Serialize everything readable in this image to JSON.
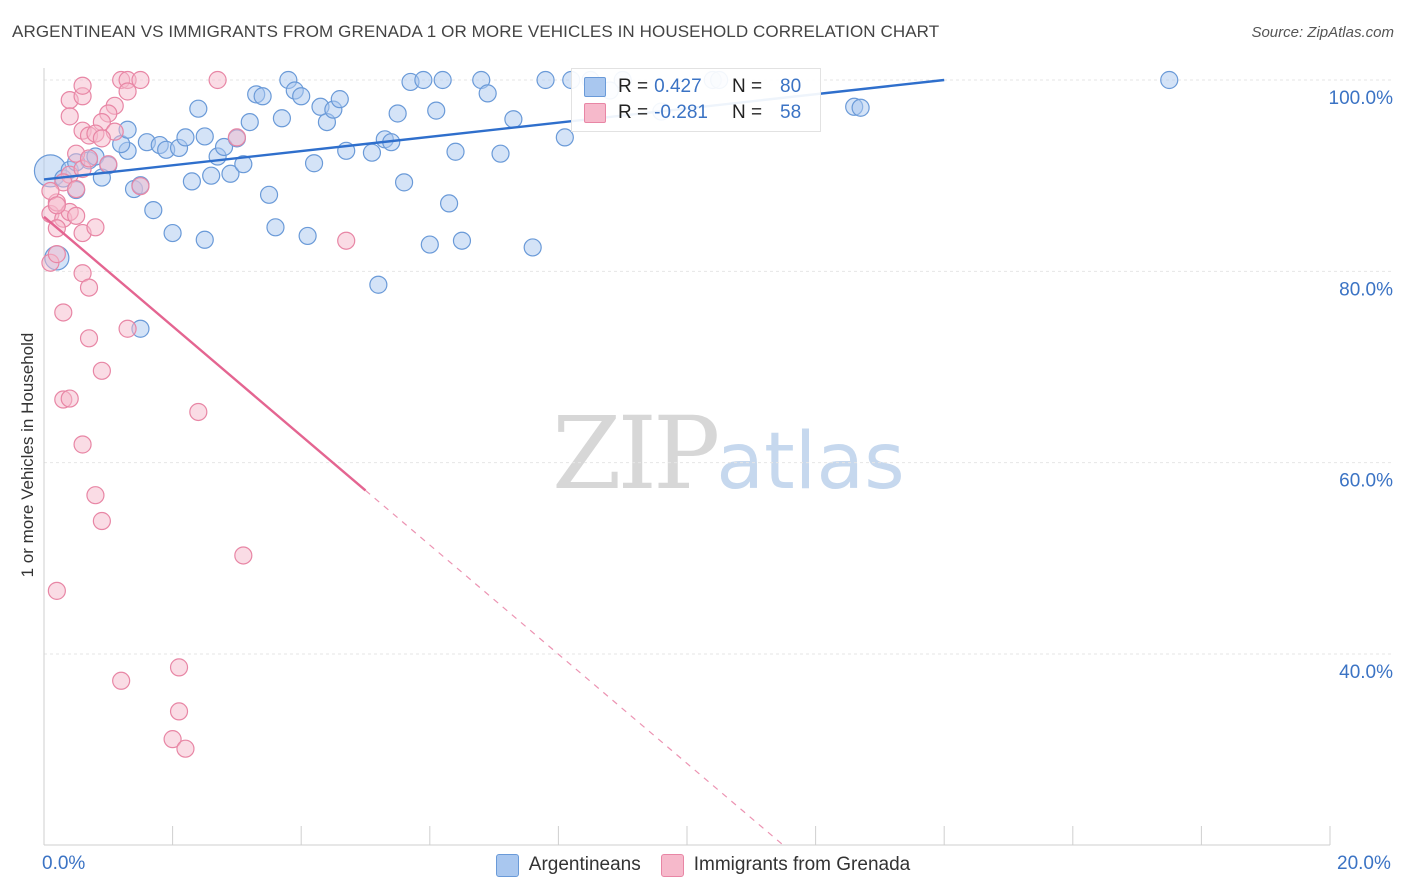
{
  "title": "ARGENTINEAN VS IMMIGRANTS FROM GRENADA 1 OR MORE VEHICLES IN HOUSEHOLD CORRELATION CHART",
  "source": "Source: ZipAtlas.com",
  "watermark": {
    "zip": "ZIP",
    "atlas": "atlas"
  },
  "colors": {
    "blue_fill": "#a9c7ef",
    "blue_stroke": "#6a9ad8",
    "blue_line": "#2f6fcc",
    "pink_fill": "#f6b9cb",
    "pink_stroke": "#e886a5",
    "pink_line": "#e46591",
    "grid": "#e6e6e6",
    "tick_label": "#3b73c4"
  },
  "legend_stats": [
    {
      "r_label": "R =",
      "r_value": "0.427",
      "n_label": "N =",
      "n_value": "80",
      "color": "#a9c7ef"
    },
    {
      "r_label": "R =",
      "r_value": "-0.281",
      "n_label": "N =",
      "n_value": "58",
      "color": "#f6b9cb"
    }
  ],
  "legend": [
    {
      "label": "Argentineans",
      "color": "#a9c7ef"
    },
    {
      "label": "Immigrants from Grenada",
      "color": "#f6b9cb"
    }
  ],
  "x_left_label": "0.0%",
  "x_right_label": "20.0%",
  "chart_data": {
    "type": "scatter",
    "title": "ARGENTINEAN VS IMMIGRANTS FROM GRENADA 1 OR MORE VEHICLES IN HOUSEHOLD CORRELATION CHART",
    "xlabel": "",
    "ylabel": "1 or more Vehicles in Household",
    "xlim": [
      0,
      20
    ],
    "ylim": [
      20,
      101
    ],
    "y_ticks": [
      40,
      60,
      80,
      100
    ],
    "y_tick_labels": [
      "40.0%",
      "60.0%",
      "80.0%",
      "100.0%"
    ],
    "grid": true,
    "legend_position": "top-center",
    "series": [
      {
        "name": "Argentineans",
        "r": 0.427,
        "n": 80,
        "trend": {
          "x": [
            0,
            14
          ],
          "y": [
            89.6,
            100
          ]
        },
        "points": [
          [
            0.1,
            90.5
          ],
          [
            0.3,
            89.7
          ],
          [
            0.4,
            90.6
          ],
          [
            0.7,
            91.6
          ],
          [
            0.5,
            91.4
          ],
          [
            0.8,
            92.0
          ],
          [
            1.0,
            91.1
          ],
          [
            0.9,
            89.8
          ],
          [
            0.5,
            88.5
          ],
          [
            1.3,
            92.6
          ],
          [
            1.2,
            93.3
          ],
          [
            1.3,
            94.8
          ],
          [
            1.4,
            88.6
          ],
          [
            1.5,
            89.0
          ],
          [
            1.6,
            93.5
          ],
          [
            1.7,
            86.4
          ],
          [
            1.8,
            93.2
          ],
          [
            1.9,
            92.7
          ],
          [
            2.0,
            84.0
          ],
          [
            2.1,
            92.9
          ],
          [
            2.2,
            94.0
          ],
          [
            2.3,
            89.4
          ],
          [
            2.4,
            97.0
          ],
          [
            2.5,
            94.1
          ],
          [
            2.5,
            83.3
          ],
          [
            2.6,
            90.0
          ],
          [
            2.7,
            92.0
          ],
          [
            2.8,
            93.0
          ],
          [
            2.9,
            90.2
          ],
          [
            3.0,
            93.9
          ],
          [
            3.1,
            91.2
          ],
          [
            3.2,
            95.6
          ],
          [
            3.3,
            98.5
          ],
          [
            3.4,
            98.3
          ],
          [
            3.5,
            88.0
          ],
          [
            3.6,
            84.6
          ],
          [
            3.7,
            96.0
          ],
          [
            3.8,
            100
          ],
          [
            3.9,
            98.9
          ],
          [
            4.0,
            98.3
          ],
          [
            4.1,
            83.7
          ],
          [
            4.2,
            91.3
          ],
          [
            4.3,
            97.2
          ],
          [
            4.4,
            95.6
          ],
          [
            4.5,
            96.9
          ],
          [
            4.6,
            98.0
          ],
          [
            4.7,
            92.6
          ],
          [
            5.1,
            92.4
          ],
          [
            5.2,
            78.6
          ],
          [
            5.3,
            93.8
          ],
          [
            5.4,
            93.5
          ],
          [
            5.5,
            96.5
          ],
          [
            5.6,
            89.3
          ],
          [
            5.7,
            99.8
          ],
          [
            5.9,
            100
          ],
          [
            6.0,
            82.8
          ],
          [
            6.1,
            96.8
          ],
          [
            6.2,
            100
          ],
          [
            6.3,
            87.1
          ],
          [
            6.4,
            92.5
          ],
          [
            6.5,
            83.2
          ],
          [
            6.8,
            100
          ],
          [
            6.9,
            98.6
          ],
          [
            7.1,
            92.3
          ],
          [
            7.3,
            95.9
          ],
          [
            7.6,
            82.5
          ],
          [
            7.8,
            100
          ],
          [
            8.1,
            94.0
          ],
          [
            8.2,
            100
          ],
          [
            8.5,
            100
          ],
          [
            8.8,
            98.9
          ],
          [
            9.0,
            100
          ],
          [
            9.6,
            96.7
          ],
          [
            10.4,
            100
          ],
          [
            10.5,
            100
          ],
          [
            12.6,
            97.2
          ],
          [
            12.7,
            97.1
          ],
          [
            17.5,
            100
          ],
          [
            1.5,
            74.0
          ],
          [
            0.2,
            81.4
          ]
        ]
      },
      {
        "name": "Immigrants from Grenada",
        "r": -0.281,
        "n": 58,
        "trend": {
          "x": [
            0,
            5.0
          ],
          "y": [
            85.7,
            57.1
          ]
        },
        "trend_extrapolated": {
          "x": [
            5.0,
            11.5
          ],
          "y": [
            57.1,
            20
          ]
        },
        "points": [
          [
            0.1,
            86.0
          ],
          [
            0.2,
            87.2
          ],
          [
            0.3,
            85.5
          ],
          [
            0.2,
            84.5
          ],
          [
            0.4,
            86.2
          ],
          [
            0.5,
            85.8
          ],
          [
            0.6,
            84.0
          ],
          [
            0.8,
            84.6
          ],
          [
            0.1,
            80.9
          ],
          [
            0.2,
            81.8
          ],
          [
            0.6,
            79.8
          ],
          [
            0.7,
            78.3
          ],
          [
            0.3,
            75.7
          ],
          [
            0.7,
            73.0
          ],
          [
            0.9,
            69.6
          ],
          [
            0.3,
            66.6
          ],
          [
            0.4,
            66.7
          ],
          [
            0.6,
            61.9
          ],
          [
            0.8,
            56.6
          ],
          [
            0.9,
            53.9
          ],
          [
            0.2,
            46.6
          ],
          [
            1.2,
            37.2
          ],
          [
            2.1,
            38.6
          ],
          [
            2.1,
            34.0
          ],
          [
            2.0,
            31.1
          ],
          [
            2.2,
            30.1
          ],
          [
            3.1,
            50.3
          ],
          [
            4.7,
            83.2
          ],
          [
            2.4,
            65.3
          ],
          [
            1.3,
            74.0
          ],
          [
            1.5,
            88.9
          ],
          [
            3.0,
            94.0
          ],
          [
            0.4,
            97.9
          ],
          [
            0.6,
            98.3
          ],
          [
            0.6,
            99.4
          ],
          [
            1.2,
            100
          ],
          [
            1.3,
            100
          ],
          [
            1.5,
            100
          ],
          [
            2.7,
            100
          ],
          [
            1.1,
            97.3
          ],
          [
            1.0,
            96.5
          ],
          [
            1.3,
            98.8
          ],
          [
            0.9,
            95.6
          ],
          [
            0.4,
            96.2
          ],
          [
            0.6,
            94.7
          ],
          [
            0.7,
            94.2
          ],
          [
            0.8,
            94.4
          ],
          [
            1.1,
            94.6
          ],
          [
            0.9,
            93.9
          ],
          [
            0.5,
            92.3
          ],
          [
            0.4,
            90.1
          ],
          [
            0.6,
            90.7
          ],
          [
            0.3,
            89.3
          ],
          [
            0.5,
            88.6
          ],
          [
            0.1,
            88.4
          ],
          [
            0.2,
            86.9
          ],
          [
            1.0,
            91.2
          ],
          [
            0.7,
            91.8
          ]
        ]
      }
    ]
  }
}
